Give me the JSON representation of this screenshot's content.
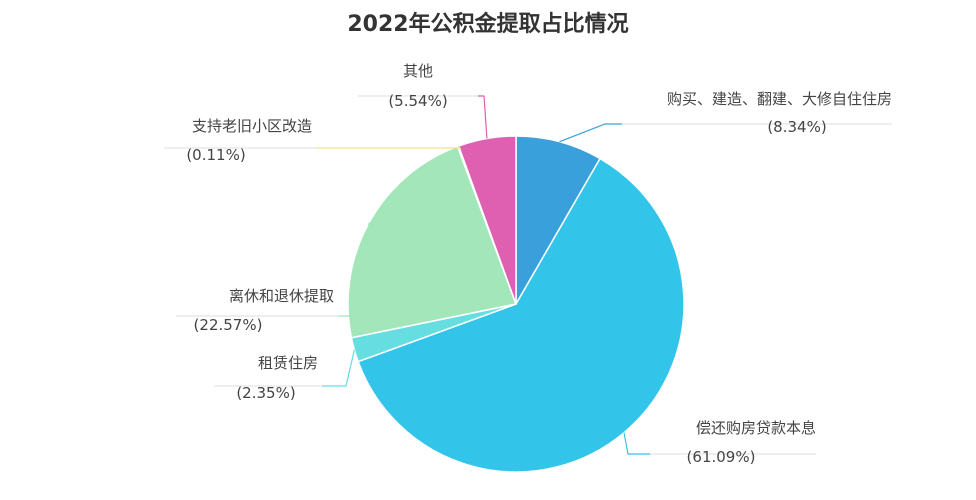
{
  "chart_data": {
    "type": "pie",
    "title": "2022年公积金提取占比情况",
    "slices": [
      {
        "name": "购买、建造、翻建、大修自住住房",
        "value": 8.34,
        "percent_label": "(8.34%)",
        "color": "#3aa0dc"
      },
      {
        "name": "偿还购房贷款本息",
        "value": 61.09,
        "percent_label": "(61.09%)",
        "color": "#33c4ea"
      },
      {
        "name": "租赁住房",
        "value": 2.35,
        "percent_label": "(2.35%)",
        "color": "#66dde0"
      },
      {
        "name": "离休和退休提取",
        "value": 22.57,
        "percent_label": "(22.57%)",
        "color": "#a2e6b9"
      },
      {
        "name": "支持老旧小区改造",
        "value": 0.11,
        "percent_label": "(0.11%)",
        "color": "#f2e08c"
      },
      {
        "name": "其他",
        "value": 5.54,
        "percent_label": "(5.54%)",
        "color": "#df5fb0"
      }
    ],
    "start": "12 o'clock",
    "direction": "clockwise",
    "legend": "none"
  }
}
